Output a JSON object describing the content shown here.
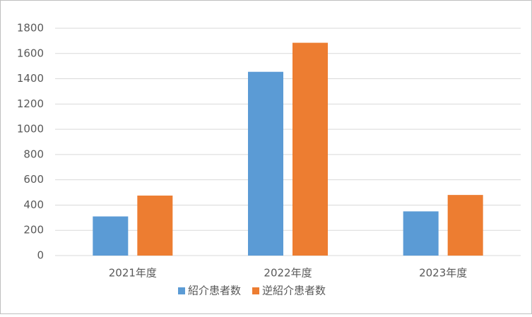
{
  "chart_data": {
    "type": "bar",
    "categories": [
      "2021年度",
      "2022年度",
      "2023年度"
    ],
    "series": [
      {
        "name": "紹介患者数",
        "color": "#5b9bd5",
        "values": [
          310,
          1455,
          350
        ]
      },
      {
        "name": "逆紹介患者数",
        "color": "#ed7d31",
        "values": [
          475,
          1685,
          480
        ]
      }
    ],
    "ylim": [
      0,
      1800
    ],
    "yticks": [
      0,
      200,
      400,
      600,
      800,
      1000,
      1200,
      1400,
      1600,
      1800
    ],
    "grid": true,
    "legend": "bottom"
  }
}
